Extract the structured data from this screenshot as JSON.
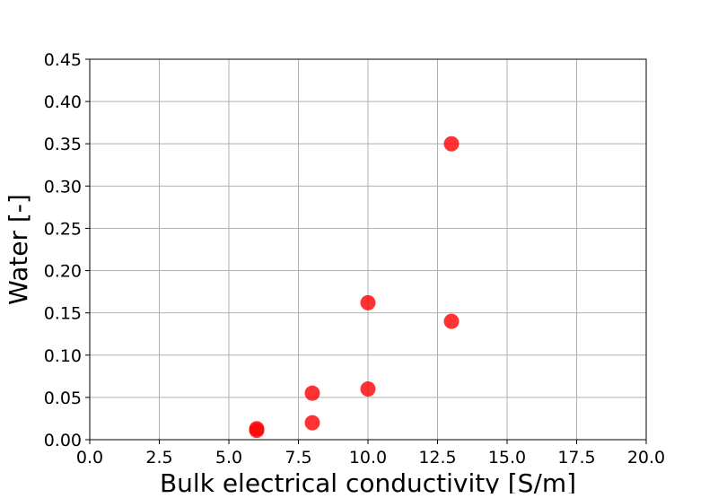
{
  "chart_data": {
    "type": "scatter",
    "xlabel": "Bulk electrical conductivity [S/m]",
    "ylabel": "Water [-]",
    "xlim": [
      0,
      20
    ],
    "ylim": [
      0,
      0.45
    ],
    "xticks": [
      "0.0",
      "2.5",
      "5.0",
      "7.5",
      "10.0",
      "12.5",
      "15.0",
      "17.5",
      "20.0"
    ],
    "yticks": [
      "0.00",
      "0.05",
      "0.10",
      "0.15",
      "0.20",
      "0.25",
      "0.30",
      "0.35",
      "0.40",
      "0.45"
    ],
    "grid": true,
    "marker_color": "#ff0000",
    "series": [
      {
        "x": [
          6,
          6,
          8,
          8,
          10,
          10,
          13,
          13
        ],
        "y": [
          0.011,
          0.013,
          0.02,
          0.055,
          0.06,
          0.162,
          0.14,
          0.35
        ]
      }
    ]
  }
}
